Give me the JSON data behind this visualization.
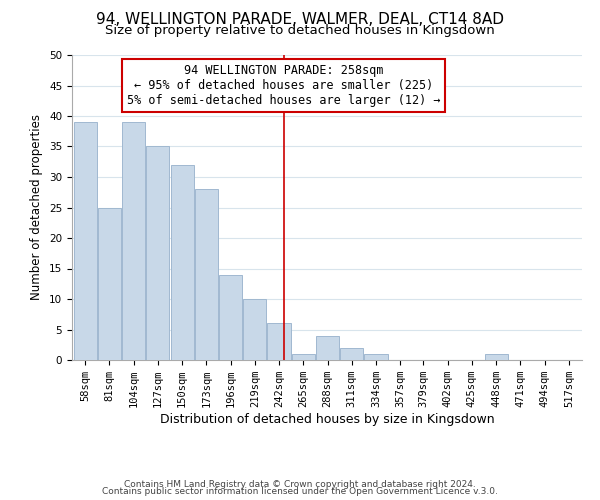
{
  "title": "94, WELLINGTON PARADE, WALMER, DEAL, CT14 8AD",
  "subtitle": "Size of property relative to detached houses in Kingsdown",
  "xlabel": "Distribution of detached houses by size in Kingsdown",
  "ylabel": "Number of detached properties",
  "footer_line1": "Contains HM Land Registry data © Crown copyright and database right 2024.",
  "footer_line2": "Contains public sector information licensed under the Open Government Licence v.3.0.",
  "bin_labels": [
    "58sqm",
    "81sqm",
    "104sqm",
    "127sqm",
    "150sqm",
    "173sqm",
    "196sqm",
    "219sqm",
    "242sqm",
    "265sqm",
    "288sqm",
    "311sqm",
    "334sqm",
    "357sqm",
    "379sqm",
    "402sqm",
    "425sqm",
    "448sqm",
    "471sqm",
    "494sqm",
    "517sqm"
  ],
  "bar_heights": [
    39,
    25,
    39,
    35,
    32,
    28,
    14,
    10,
    6,
    1,
    4,
    2,
    1,
    0,
    0,
    0,
    0,
    1,
    0,
    0,
    0
  ],
  "bin_starts": [
    58,
    81,
    104,
    127,
    150,
    173,
    196,
    219,
    242,
    265,
    288,
    311,
    334,
    357,
    379,
    402,
    425,
    448,
    471,
    494,
    517
  ],
  "bin_width": 23,
  "bar_color": "#c8d8e8",
  "bar_edge_color": "#a0b8d0",
  "vline_x": 258,
  "vline_color": "#cc0000",
  "ylim": [
    0,
    50
  ],
  "yticks": [
    0,
    5,
    10,
    15,
    20,
    25,
    30,
    35,
    40,
    45,
    50
  ],
  "annotation_title": "94 WELLINGTON PARADE: 258sqm",
  "annotation_line1": "← 95% of detached houses are smaller (225)",
  "annotation_line2": "5% of semi-detached houses are larger (12) →",
  "annotation_box_color": "#ffffff",
  "annotation_border_color": "#cc0000",
  "title_fontsize": 11,
  "subtitle_fontsize": 9.5,
  "xlabel_fontsize": 9,
  "ylabel_fontsize": 8.5,
  "tick_fontsize": 7.5,
  "annotation_fontsize": 8.5,
  "footer_fontsize": 6.5,
  "grid_color": "#d8e4ec"
}
